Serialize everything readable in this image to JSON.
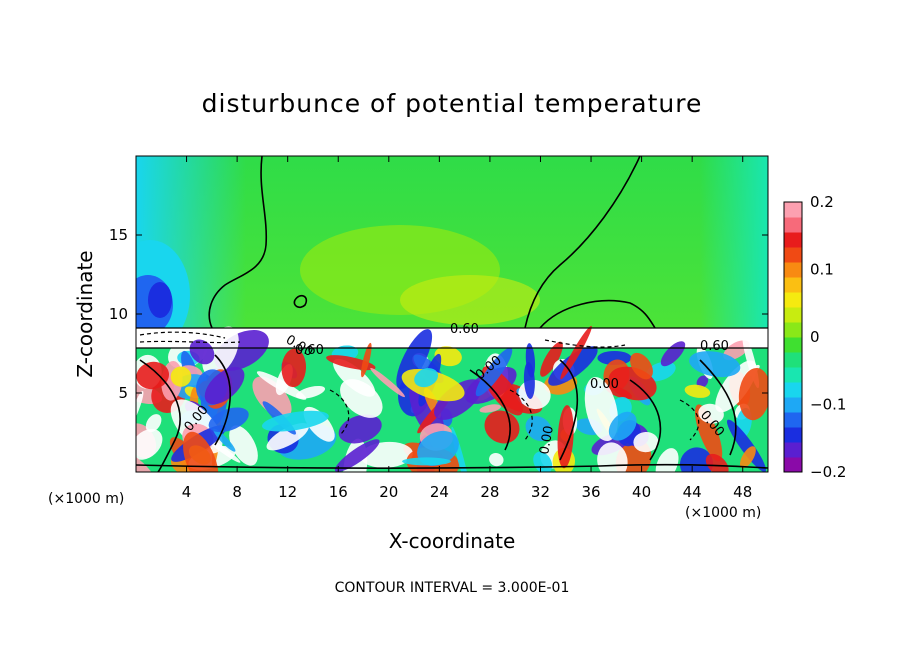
{
  "chart_data": {
    "type": "heatmap",
    "title": "disturbunce of potential temperature",
    "xlabel": "X-coordinate",
    "ylabel": "Z-coordinate",
    "x_unit_label": "(×1000 m)",
    "x_ticks": [
      4,
      8,
      12,
      16,
      20,
      24,
      28,
      32,
      36,
      40,
      44,
      48
    ],
    "x_range": [
      0,
      50
    ],
    "y_ticks": [
      5,
      10,
      15
    ],
    "y_range": [
      0,
      20
    ],
    "colorbar": {
      "min": -0.2,
      "max": 0.2,
      "tick_labels": [
        "0.2",
        "0.1",
        "0",
        "−0.1",
        "−0.2"
      ],
      "tick_values": [
        0.2,
        0.1,
        0,
        -0.1,
        -0.2
      ],
      "colors": [
        "#8a0aa8",
        "#5a1fd0",
        "#1a2ee0",
        "#1f66f0",
        "#1ea8f5",
        "#19d6ee",
        "#19e6b0",
        "#1fe07a",
        "#3fe030",
        "#8ae818",
        "#c8ec10",
        "#f5ea10",
        "#fbbf12",
        "#f88a12",
        "#f04a14",
        "#e81c1c",
        "#f76a7a",
        "#fca0b0"
      ]
    },
    "contour_labels": [
      "0.60",
      "0.60",
      "0.60",
      "0.00",
      "0.00",
      "0.00",
      "0.00",
      "0.00",
      "0.00"
    ],
    "contour_interval_text": "CONTOUR INTERVAL = 3.000E-01",
    "colors": {
      "background_mid": "#3fe030",
      "background_upper": "#5ee83a",
      "left_edge": "#19d6ee",
      "band": "#ffffff"
    }
  }
}
